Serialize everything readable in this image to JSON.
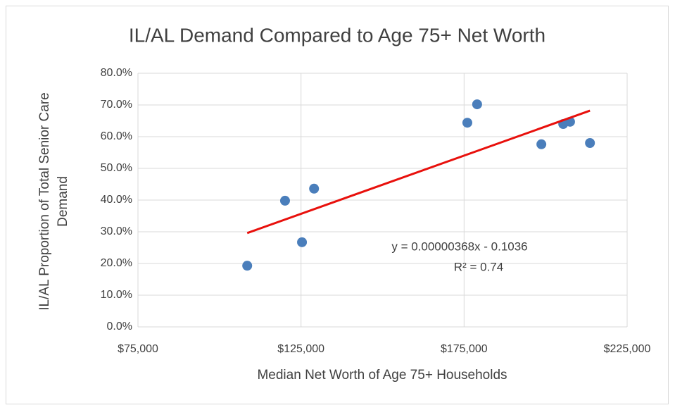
{
  "chart_data": {
    "type": "scatter",
    "title": "IL/AL Demand Compared to Age 75+ Net Worth",
    "xlabel": "Median Net Worth of Age 75+ Households",
    "ylabel_lines": [
      "IL/AL Proportion of Total Senior Care",
      "Demand"
    ],
    "series": [
      {
        "color": "#4a7ebb",
        "x": [
          108500,
          120100,
          125300,
          129000,
          176000,
          179000,
          198700,
          205400,
          207500,
          213600
        ],
        "values": [
          19.3,
          39.8,
          26.7,
          43.6,
          64.4,
          70.2,
          57.6,
          64.0,
          64.7,
          58.0
        ]
      }
    ],
    "trendline": {
      "color": "#e8100c",
      "x": [
        108500,
        213600
      ],
      "values": [
        29.6,
        68.2
      ]
    },
    "annotations": [
      "y = 0.00000368x - 0.1036",
      "R² = 0.74"
    ],
    "xlim": [
      75000,
      225000
    ],
    "xticks": [
      {
        "value": 75000,
        "label": "$75,000"
      },
      {
        "value": 125000,
        "label": "$125,000"
      },
      {
        "value": 175000,
        "label": "$175,000"
      },
      {
        "value": 225000,
        "label": "$225,000"
      }
    ],
    "ylim": [
      0,
      80
    ],
    "yticks": [
      {
        "value": 0,
        "label": "0.0%"
      },
      {
        "value": 10,
        "label": "10.0%"
      },
      {
        "value": 20,
        "label": "20.0%"
      },
      {
        "value": 30,
        "label": "30.0%"
      },
      {
        "value": 40,
        "label": "40.0%"
      },
      {
        "value": 50,
        "label": "50.0%"
      },
      {
        "value": 60,
        "label": "60.0%"
      },
      {
        "value": 70,
        "label": "70.0%"
      },
      {
        "value": 80,
        "label": "80.0%"
      }
    ],
    "grid": true
  }
}
